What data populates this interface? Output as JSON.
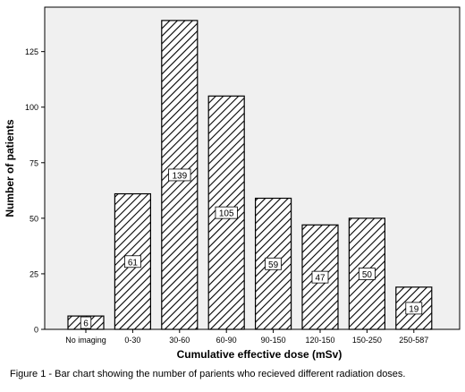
{
  "caption": "Figure 1 - Bar chart showing the number of parients who recieved different radiation doses.",
  "chart_data": {
    "type": "bar",
    "categories": [
      "No imaging",
      "0-30",
      "30-60",
      "60-90",
      "90-150",
      "120-150",
      "150-250",
      "250-587"
    ],
    "values": [
      6,
      61,
      139,
      105,
      59,
      47,
      50,
      19
    ],
    "data_labels": [
      "6",
      "61",
      "139",
      "105",
      "59",
      "47",
      "50",
      "19"
    ],
    "xlabel": "Cumulative effective dose (mSv)",
    "ylabel": "Number of patients",
    "ylim": [
      0,
      145
    ],
    "yticks": [
      0,
      25,
      50,
      75,
      100,
      125
    ],
    "grid": false,
    "legend": "none",
    "colors": {
      "plot_background": "#f0f0f0",
      "bar_fill": "#ffffff",
      "hatch": "#000000",
      "axis": "#000000",
      "page_background": "#ffffff"
    }
  }
}
